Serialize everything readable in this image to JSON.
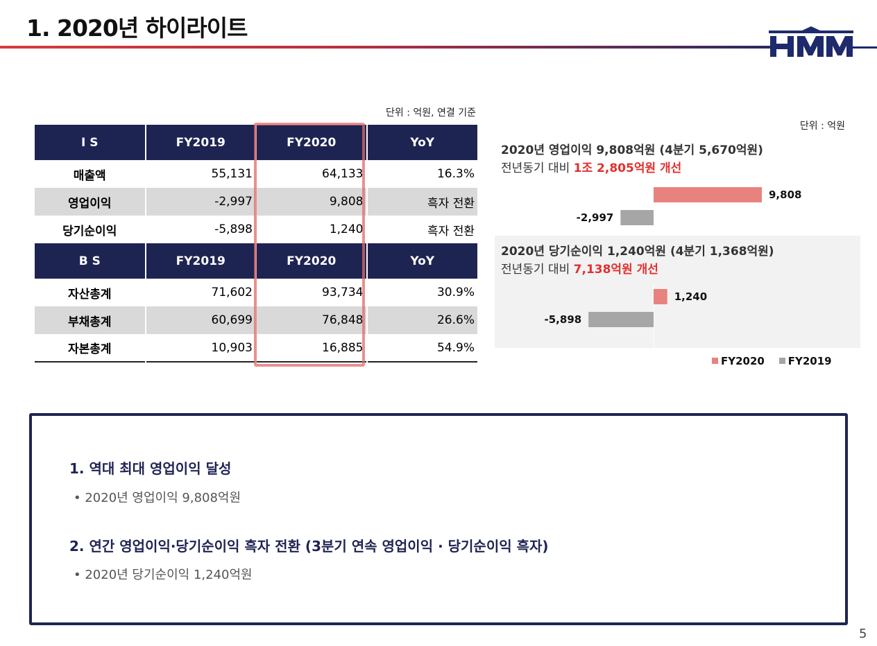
{
  "title": "1. 2020년 하이라이트",
  "logo": {
    "text": "HMM",
    "color": "#1e2a6b"
  },
  "table": {
    "unit": "단위 : 억원, 연결 기준",
    "is_header": [
      "I S",
      "FY2019",
      "FY2020",
      "YoY"
    ],
    "is_rows": [
      [
        "매출액",
        "55,131",
        "64,133",
        "16.3%"
      ],
      [
        "영업이익",
        "-2,997",
        "9,808",
        "흑자 전환"
      ],
      [
        "당기순이익",
        "-5,898",
        "1,240",
        "흑자 전환"
      ]
    ],
    "bs_header": [
      "B S",
      "FY2019",
      "FY2020",
      "YoY"
    ],
    "bs_rows": [
      [
        "자산총계",
        "71,602",
        "93,734",
        "30.9%"
      ],
      [
        "부채총계",
        "60,699",
        "76,848",
        "26.6%"
      ],
      [
        "자본총계",
        "10,903",
        "16,885",
        "54.9%"
      ]
    ],
    "header_color": "#1e2452",
    "highlight_color": "#e06b6b"
  },
  "chart_panel": {
    "unit": "단위 : 억원",
    "op_title": "2020년 영업이익 9,808억원 (4분기 5,670억원)",
    "op_sub_prefix": "전년동기 대비 ",
    "op_sub_highlight": "1조 2,805억원 개선",
    "net_title": "2020년 당기순이익 1,240억원 (4분기 1,368억원)",
    "net_sub_prefix": "전년동기 대비 ",
    "net_sub_highlight": "7,138억원 개선"
  },
  "chart_data": {
    "type": "bar",
    "orientation": "horizontal",
    "groups": [
      "영업이익",
      "당기순이익"
    ],
    "series": [
      {
        "name": "FY2020",
        "values": [
          9808,
          1240
        ],
        "labels": [
          "9,808",
          "1,240"
        ],
        "color": "#e8827e"
      },
      {
        "name": "FY2019",
        "values": [
          -2997,
          -5898
        ],
        "labels": [
          "-2,997",
          "-5,898"
        ],
        "color": "#a6a6a6"
      }
    ],
    "legend_position": "bottom-right",
    "grid": false
  },
  "summary": {
    "items": [
      {
        "heading": "1. 역대 최대 영업이익 달성",
        "detail": "• 2020년 영업이익 9,808억원"
      },
      {
        "heading": "2. 연간 영업이익·당기순이익 흑자 전환 (3분기 연속 영업이익 · 당기순이익 흑자)",
        "detail": "• 2020년 당기순이익 1,240억원"
      }
    ]
  },
  "page_number": "5"
}
